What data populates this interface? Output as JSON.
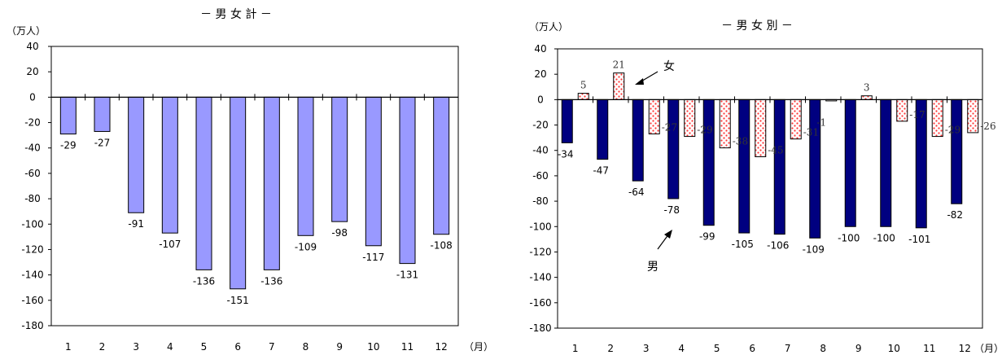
{
  "chart_data": [
    {
      "type": "bar",
      "title": "－ 男 女 計 －",
      "ylabel": "（万人）",
      "xlabel": "（月）",
      "ylim": [
        -180,
        40
      ],
      "yticks": [
        40,
        20,
        0,
        -20,
        -40,
        -60,
        -80,
        -100,
        -120,
        -140,
        -160,
        -180
      ],
      "categories": [
        "1",
        "2",
        "3",
        "4",
        "5",
        "6",
        "7",
        "8",
        "9",
        "10",
        "11",
        "12"
      ],
      "values": [
        -29,
        -27,
        -91,
        -107,
        -136,
        -151,
        -136,
        -109,
        -98,
        -117,
        -131,
        -108
      ],
      "color": "#9999ff",
      "grid": false
    },
    {
      "type": "bar",
      "title": "－ 男 女 別 －",
      "ylabel": "（万人）",
      "xlabel": "（月）",
      "ylim": [
        -180,
        40
      ],
      "yticks": [
        40,
        20,
        0,
        -20,
        -40,
        -60,
        -80,
        -100,
        -120,
        -140,
        -160,
        -180
      ],
      "categories": [
        "1",
        "2",
        "3",
        "4",
        "5",
        "6",
        "7",
        "8",
        "9",
        "10",
        "11",
        "12"
      ],
      "series": [
        {
          "name": "男",
          "values": [
            -34,
            -47,
            -64,
            -78,
            -99,
            -105,
            -106,
            -109,
            -100,
            -100,
            -101,
            -82
          ],
          "color": "#000080"
        },
        {
          "name": "女",
          "values": [
            5,
            21,
            -27,
            -29,
            -38,
            -45,
            -31,
            -1,
            3,
            -17,
            -29,
            -26
          ],
          "color": "#ff8080"
        }
      ],
      "grid": false
    }
  ]
}
